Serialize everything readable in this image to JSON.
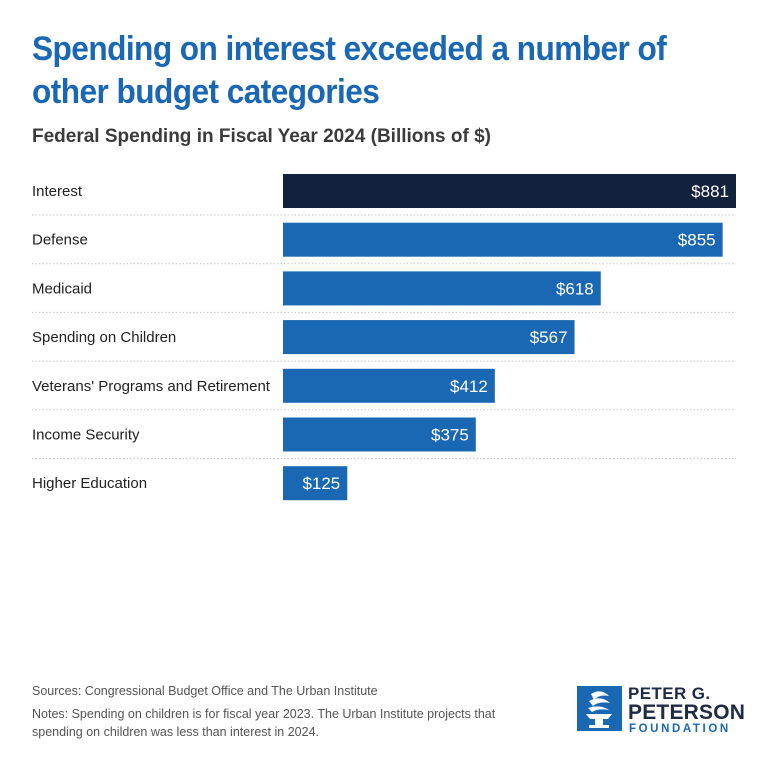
{
  "headline": "Spending on interest exceeded a number of other budget categories",
  "subtitle": "Federal Spending in Fiscal Year 2024 (Billions of $)",
  "sources": "Sources: Congressional Budget Office and The Urban Institute",
  "notes": "Notes: Spending on children is for fiscal year 2023. The Urban Institute projects that spending on children was less than interest in 2024.",
  "logo": {
    "line1": "PETER G.",
    "line2": "PETERSON",
    "line3": "FOUNDATION",
    "mark_icon": "torch-icon"
  },
  "colors": {
    "highlight_bar": "#14213d",
    "bar": "#1a68b3",
    "label_text": "#ffffff"
  },
  "chart_data": {
    "type": "bar",
    "orientation": "horizontal",
    "title": "Federal Spending in Fiscal Year 2024 (Billions of $)",
    "categories": [
      "Interest",
      "Defense",
      "Medicaid",
      "Spending on Children",
      "Veterans' Programs and Retirement",
      "Income Security",
      "Higher Education"
    ],
    "values": [
      881,
      855,
      618,
      567,
      412,
      375,
      125
    ],
    "value_labels": [
      "$881",
      "$855",
      "$618",
      "$567",
      "$412",
      "$375",
      "$125"
    ],
    "highlighted_category": "Interest",
    "xlim": [
      0,
      881
    ],
    "grid": false,
    "legend": "none"
  }
}
